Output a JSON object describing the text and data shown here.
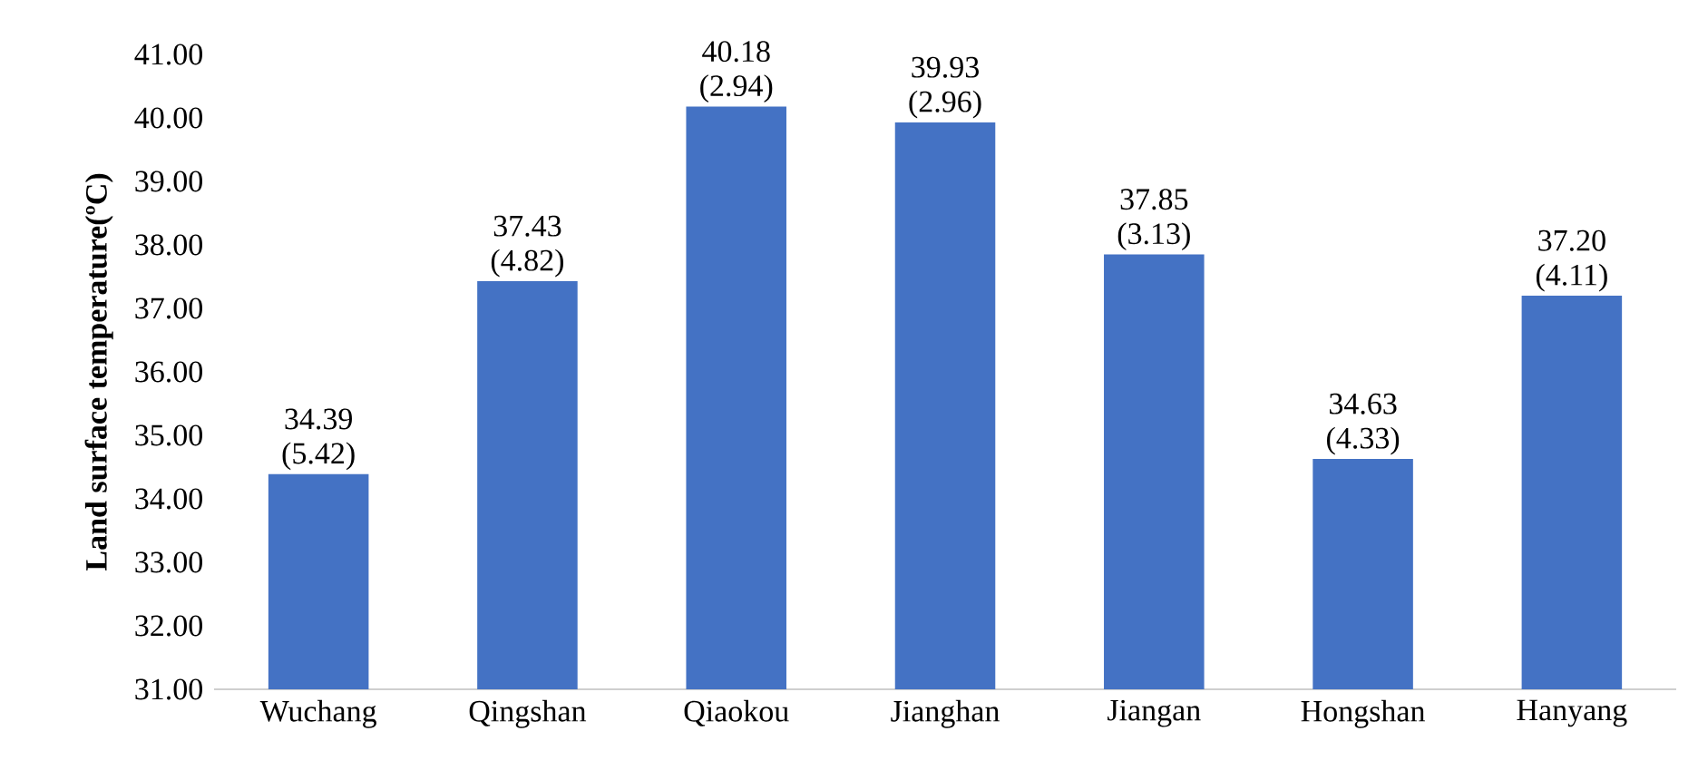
{
  "chart_data": {
    "type": "bar",
    "ylabel": "Land surface temperature(ºC)",
    "categories": [
      "Wuchang",
      "Qingshan",
      "Qiaokou",
      "Jianghan",
      "Jiangan",
      "Hongshan",
      "Hanyang"
    ],
    "values": [
      34.39,
      37.43,
      40.18,
      39.93,
      37.85,
      34.63,
      37.2
    ],
    "value_labels": [
      "34.39 (5.42)",
      "37.43 (4.82)",
      "40.18 (2.94)",
      "39.93 (2.96)",
      "37.85 (3.13)",
      "34.63 (4.33)",
      "37.20 (4.11)"
    ],
    "color": "#4472c4",
    "ylim": [
      31,
      41
    ],
    "yticks": [
      {
        "value": 31,
        "label": "31.00"
      },
      {
        "value": 32,
        "label": "32.00"
      },
      {
        "value": 33,
        "label": "33.00"
      },
      {
        "value": 34,
        "label": "34.00"
      },
      {
        "value": 35,
        "label": "35.00"
      },
      {
        "value": 36,
        "label": "36.00"
      },
      {
        "value": 37,
        "label": "37.00"
      },
      {
        "value": 38,
        "label": "38.00"
      },
      {
        "value": 39,
        "label": "39.00"
      },
      {
        "value": 40,
        "label": "40.00"
      },
      {
        "value": 41,
        "label": "41.00"
      }
    ]
  }
}
